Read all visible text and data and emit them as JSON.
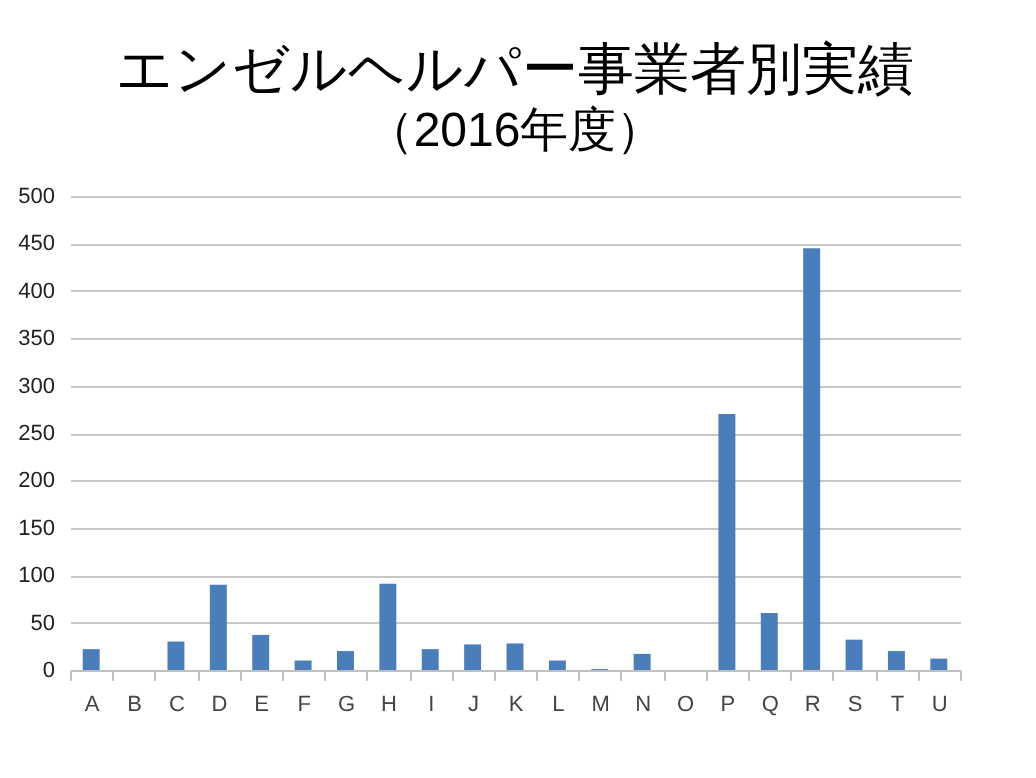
{
  "chart_data": {
    "type": "bar",
    "title": "エンゼルヘルパー事業者別実績",
    "subtitle": "（2016年度）",
    "categories": [
      "A",
      "B",
      "C",
      "D",
      "E",
      "F",
      "G",
      "H",
      "I",
      "J",
      "K",
      "L",
      "M",
      "N",
      "O",
      "P",
      "Q",
      "R",
      "S",
      "T",
      "U"
    ],
    "values": [
      22,
      0,
      30,
      90,
      37,
      10,
      20,
      91,
      22,
      27,
      28,
      10,
      1,
      17,
      0,
      270,
      60,
      445,
      32,
      20,
      12
    ],
    "color": "#4a7ebb",
    "ylim": [
      0,
      500
    ],
    "yticks": [
      0,
      50,
      100,
      150,
      200,
      250,
      300,
      350,
      400,
      450,
      500
    ],
    "grid": "y"
  }
}
